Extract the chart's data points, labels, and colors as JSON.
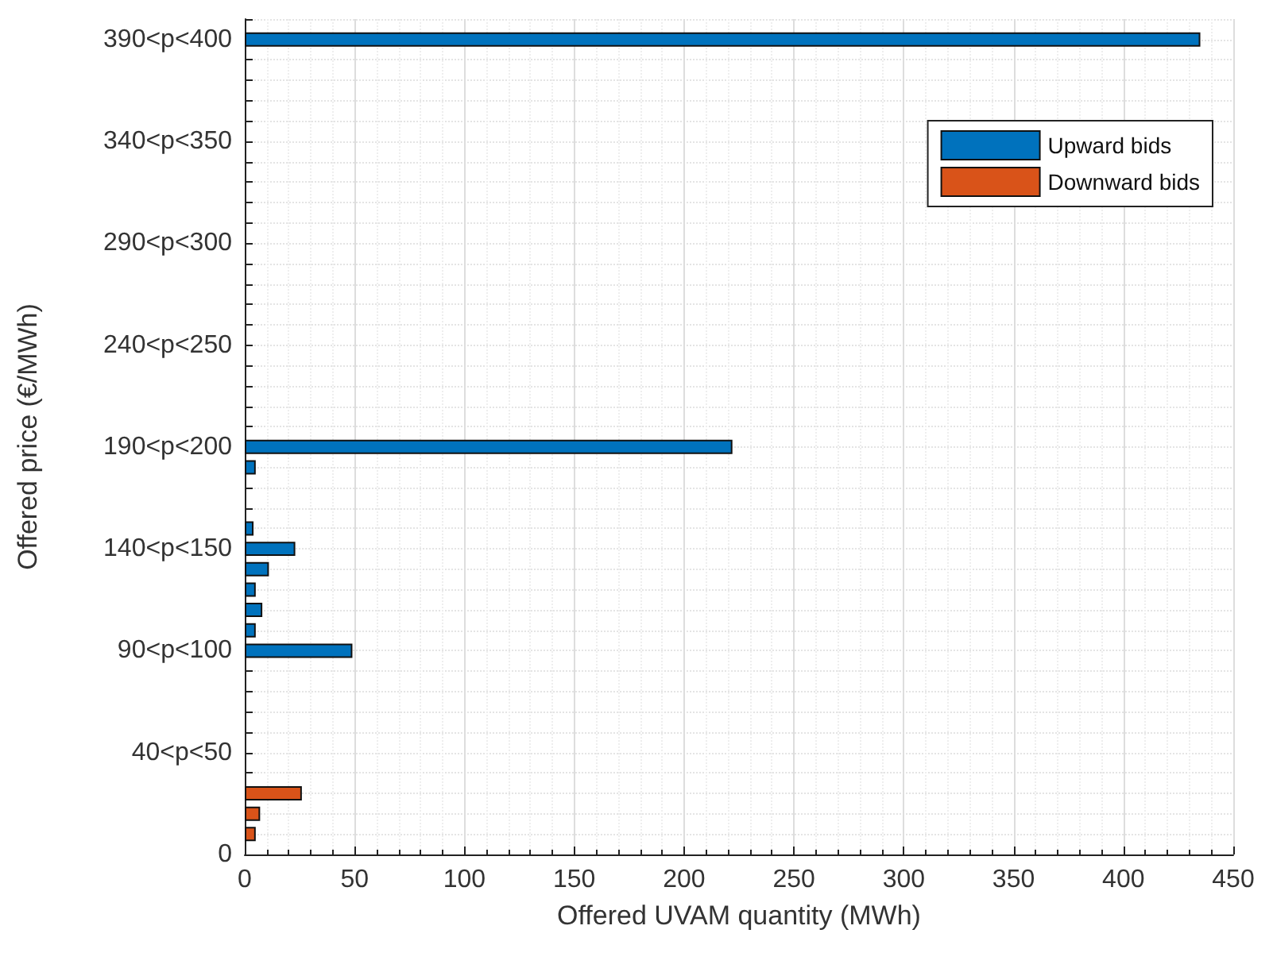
{
  "chart_data": {
    "type": "bar",
    "orientation": "horizontal",
    "xlabel": "Offered UVAM quantity (MWh)",
    "ylabel": "Offered price (€/MWh)",
    "categories": [
      null,
      "390<p<400",
      null,
      null,
      null,
      null,
      "340<p<350",
      null,
      null,
      null,
      null,
      "290<p<300",
      null,
      null,
      null,
      null,
      "240<p<250",
      null,
      null,
      null,
      null,
      "190<p<200",
      null,
      null,
      null,
      null,
      "140<p<150",
      null,
      null,
      null,
      null,
      "90<p<100",
      null,
      null,
      null,
      null,
      "40<p<50",
      null,
      null,
      null,
      null,
      "0"
    ],
    "series": [
      {
        "name": "Upward bids",
        "color": "#0072bd",
        "values": [
          null,
          435,
          null,
          null,
          null,
          null,
          null,
          null,
          null,
          null,
          null,
          null,
          null,
          null,
          null,
          null,
          null,
          null,
          null,
          null,
          null,
          222,
          5,
          null,
          null,
          4,
          23,
          11,
          5,
          8,
          5,
          49,
          null,
          null,
          null,
          null,
          null,
          null,
          null,
          null,
          null,
          null
        ]
      },
      {
        "name": "Downward bids",
        "color": "#d95319",
        "values": [
          null,
          null,
          null,
          null,
          null,
          null,
          null,
          null,
          null,
          null,
          null,
          null,
          null,
          null,
          null,
          null,
          null,
          null,
          null,
          null,
          null,
          null,
          null,
          null,
          null,
          null,
          null,
          null,
          null,
          null,
          null,
          null,
          null,
          null,
          null,
          null,
          null,
          null,
          26,
          7,
          5,
          null
        ]
      }
    ],
    "xlim": [
      0,
      450
    ],
    "xticks": [
      0,
      50,
      100,
      150,
      200,
      250,
      300,
      350,
      400,
      450
    ],
    "grid": true,
    "legend": "top right"
  }
}
